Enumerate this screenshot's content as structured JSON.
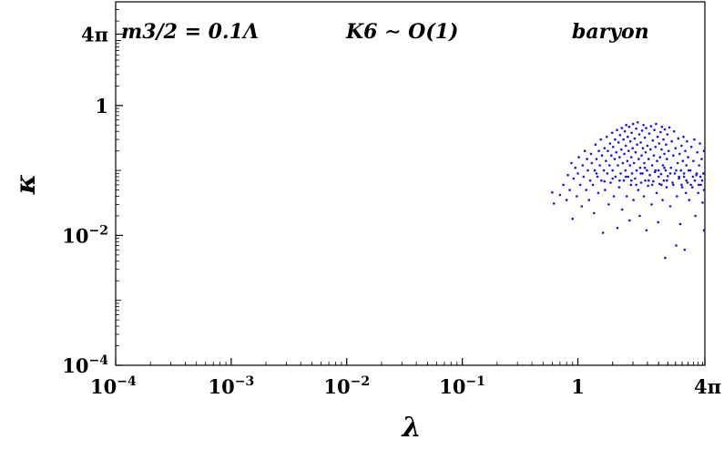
{
  "chart_data": {
    "type": "scatter",
    "title": "",
    "xlabel": "λ",
    "ylabel": "κ",
    "x_scale": "log",
    "y_scale": "log",
    "xlim": [
      0.0001,
      12.566
    ],
    "ylim": [
      0.0001,
      39.5
    ],
    "x_ticks": [
      {
        "value": 0.0001,
        "label": "10−4"
      },
      {
        "value": 0.001,
        "label": "10−3"
      },
      {
        "value": 0.01,
        "label": "10−2"
      },
      {
        "value": 0.1,
        "label": "10−1"
      },
      {
        "value": 1,
        "label": "1"
      },
      {
        "value": 12.566,
        "label": "4π"
      }
    ],
    "y_ticks": [
      {
        "value": 0.0001,
        "label": "10−4"
      },
      {
        "value": 0.01,
        "label": "10−2"
      },
      {
        "value": 1,
        "label": "1"
      },
      {
        "value": 12.566,
        "label": "4π"
      }
    ],
    "annotations": [
      "m3/2 = 0.1Λ",
      "K6 ∼ O(1)",
      "baryon"
    ],
    "grid": false,
    "legend": "none",
    "marker_color": "#1515e6",
    "series": [
      {
        "points": [
          [
            0.6,
            0.046
          ],
          [
            0.62,
            0.031
          ],
          [
            0.7,
            0.042
          ],
          [
            0.75,
            0.06
          ],
          [
            0.8,
            0.035
          ],
          [
            0.82,
            0.085
          ],
          [
            0.85,
            0.05
          ],
          [
            0.88,
            0.13
          ],
          [
            0.9,
            0.018
          ],
          [
            0.92,
            0.075
          ],
          [
            0.95,
            0.11
          ],
          [
            0.98,
            0.04
          ],
          [
            1.0,
            0.09
          ],
          [
            1.02,
            0.16
          ],
          [
            1.05,
            0.06
          ],
          [
            1.08,
            0.028
          ],
          [
            1.1,
            0.12
          ],
          [
            1.12,
            0.08
          ],
          [
            1.15,
            0.2
          ],
          [
            1.18,
            0.05
          ],
          [
            1.2,
            0.15
          ],
          [
            1.22,
            0.1
          ],
          [
            1.25,
            0.035
          ],
          [
            1.28,
            0.07
          ],
          [
            1.3,
            0.18
          ],
          [
            1.32,
            0.13
          ],
          [
            1.35,
            0.06
          ],
          [
            1.38,
            0.022
          ],
          [
            1.4,
            0.1
          ],
          [
            1.42,
            0.25
          ],
          [
            1.45,
            0.15
          ],
          [
            1.48,
            0.08
          ],
          [
            1.5,
            0.045
          ],
          [
            1.52,
            0.2
          ],
          [
            1.55,
            0.12
          ],
          [
            1.58,
            0.3
          ],
          [
            1.6,
            0.07
          ],
          [
            1.62,
            0.17
          ],
          [
            1.65,
            0.011
          ],
          [
            1.68,
            0.1
          ],
          [
            1.7,
            0.22
          ],
          [
            1.72,
            0.05
          ],
          [
            1.75,
            0.14
          ],
          [
            1.78,
            0.33
          ],
          [
            1.8,
            0.09
          ],
          [
            1.82,
            0.2
          ],
          [
            1.85,
            0.03
          ],
          [
            1.88,
            0.12
          ],
          [
            1.9,
            0.26
          ],
          [
            1.92,
            0.065
          ],
          [
            1.95,
            0.17
          ],
          [
            1.98,
            0.38
          ],
          [
            2.0,
            0.1
          ],
          [
            2.02,
            0.23
          ],
          [
            2.05,
            0.04
          ],
          [
            2.08,
            0.15
          ],
          [
            2.1,
            0.3
          ],
          [
            2.12,
            0.08
          ],
          [
            2.15,
            0.19
          ],
          [
            2.18,
            0.42
          ],
          [
            2.2,
            0.013
          ],
          [
            2.22,
            0.12
          ],
          [
            2.25,
            0.27
          ],
          [
            2.28,
            0.055
          ],
          [
            2.3,
            0.16
          ],
          [
            2.32,
            0.35
          ],
          [
            2.35,
            0.09
          ],
          [
            2.38,
            0.21
          ],
          [
            2.4,
            0.45
          ],
          [
            2.42,
            0.025
          ],
          [
            2.45,
            0.13
          ],
          [
            2.48,
            0.3
          ],
          [
            2.5,
            0.07
          ],
          [
            2.52,
            0.18
          ],
          [
            2.55,
            0.4
          ],
          [
            2.58,
            0.1
          ],
          [
            2.6,
            0.24
          ],
          [
            2.62,
            0.5
          ],
          [
            2.65,
            0.04
          ],
          [
            2.68,
            0.14
          ],
          [
            2.7,
            0.33
          ],
          [
            2.72,
            0.08
          ],
          [
            2.75,
            0.2
          ],
          [
            2.78,
            0.47
          ],
          [
            2.8,
            0.017
          ],
          [
            2.82,
            0.12
          ],
          [
            2.85,
            0.28
          ],
          [
            2.88,
            0.06
          ],
          [
            2.9,
            0.16
          ],
          [
            2.92,
            0.38
          ],
          [
            2.95,
            0.09
          ],
          [
            2.98,
            0.22
          ],
          [
            3.0,
            0.52
          ],
          [
            3.03,
            0.035
          ],
          [
            3.06,
            0.13
          ],
          [
            3.1,
            0.31
          ],
          [
            3.13,
            0.075
          ],
          [
            3.16,
            0.19
          ],
          [
            3.2,
            0.44
          ],
          [
            3.23,
            0.1
          ],
          [
            3.26,
            0.25
          ],
          [
            3.3,
            0.55
          ],
          [
            3.33,
            0.05
          ],
          [
            3.36,
            0.15
          ],
          [
            3.4,
            0.36
          ],
          [
            3.43,
            0.02
          ],
          [
            3.46,
            0.11
          ],
          [
            3.5,
            0.27
          ],
          [
            3.53,
            0.065
          ],
          [
            3.56,
            0.17
          ],
          [
            3.6,
            0.41
          ],
          [
            3.63,
            0.09
          ],
          [
            3.66,
            0.22
          ],
          [
            3.7,
            0.5
          ],
          [
            3.73,
            0.04
          ],
          [
            3.76,
            0.13
          ],
          [
            3.8,
            0.32
          ],
          [
            3.83,
            0.07
          ],
          [
            3.86,
            0.19
          ],
          [
            3.9,
            0.45
          ],
          [
            3.93,
            0.012
          ],
          [
            3.96,
            0.1
          ],
          [
            4.0,
            0.24
          ],
          [
            4.05,
            0.058
          ],
          [
            4.1,
            0.15
          ],
          [
            4.15,
            0.37
          ],
          [
            4.2,
            0.085
          ],
          [
            4.25,
            0.21
          ],
          [
            4.3,
            0.48
          ],
          [
            4.35,
            0.03
          ],
          [
            4.4,
            0.12
          ],
          [
            4.45,
            0.29
          ],
          [
            4.5,
            0.068
          ],
          [
            4.55,
            0.17
          ],
          [
            4.6,
            0.42
          ],
          [
            4.65,
            0.095
          ],
          [
            4.7,
            0.23
          ],
          [
            4.75,
            0.52
          ],
          [
            4.8,
            0.045
          ],
          [
            4.85,
            0.14
          ],
          [
            4.9,
            0.33
          ],
          [
            4.95,
            0.016
          ],
          [
            5.0,
            0.1
          ],
          [
            5.05,
            0.26
          ],
          [
            5.1,
            0.062
          ],
          [
            5.15,
            0.16
          ],
          [
            5.2,
            0.39
          ],
          [
            5.25,
            0.088
          ],
          [
            5.3,
            0.21
          ],
          [
            5.35,
            0.47
          ],
          [
            5.4,
            0.035
          ],
          [
            5.45,
            0.12
          ],
          [
            5.5,
            0.3
          ],
          [
            5.55,
            0.07
          ],
          [
            5.6,
            0.18
          ],
          [
            5.65,
            0.43
          ],
          [
            5.7,
            0.0045
          ],
          [
            5.75,
            0.1
          ],
          [
            5.8,
            0.25
          ],
          [
            5.85,
            0.055
          ],
          [
            5.9,
            0.15
          ],
          [
            5.95,
            0.36
          ],
          [
            6.0,
            0.082
          ],
          [
            6.1,
            0.2
          ],
          [
            6.2,
            0.46
          ],
          [
            6.3,
            0.028
          ],
          [
            6.4,
            0.11
          ],
          [
            6.5,
            0.28
          ],
          [
            6.6,
            0.065
          ],
          [
            6.7,
            0.17
          ],
          [
            6.8,
            0.4
          ],
          [
            6.9,
            0.09
          ],
          [
            7.0,
            0.22
          ],
          [
            7.1,
            0.007
          ],
          [
            7.2,
            0.04
          ],
          [
            7.3,
            0.13
          ],
          [
            7.4,
            0.31
          ],
          [
            7.5,
            0.075
          ],
          [
            7.6,
            0.18
          ],
          [
            7.7,
            0.015
          ],
          [
            7.8,
            0.1
          ],
          [
            7.9,
            0.24
          ],
          [
            8.0,
            0.055
          ],
          [
            8.1,
            0.14
          ],
          [
            8.2,
            0.33
          ],
          [
            8.3,
            0.08
          ],
          [
            8.4,
            0.006
          ],
          [
            8.5,
            0.2
          ],
          [
            8.6,
            0.045
          ],
          [
            8.7,
            0.12
          ],
          [
            8.8,
            0.28
          ],
          [
            8.9,
            0.065
          ],
          [
            9.0,
            0.16
          ],
          [
            9.2,
            0.035
          ],
          [
            9.4,
            0.1
          ],
          [
            9.6,
            0.23
          ],
          [
            9.8,
            0.055
          ],
          [
            10.0,
            0.14
          ],
          [
            10.2,
            0.3
          ],
          [
            10.4,
            0.02
          ],
          [
            10.6,
            0.085
          ],
          [
            10.8,
            0.19
          ],
          [
            11.0,
            0.045
          ],
          [
            11.2,
            0.12
          ],
          [
            11.4,
            0.26
          ],
          [
            11.6,
            0.06
          ],
          [
            11.8,
            0.15
          ],
          [
            12.0,
            0.032
          ],
          [
            12.2,
            0.09
          ],
          [
            12.4,
            0.2
          ],
          [
            12.5,
            0.05
          ],
          [
            12.55,
            0.012
          ],
          [
            2.6,
            0.08
          ],
          [
            2.9,
            0.07
          ],
          [
            3.2,
            0.06
          ],
          [
            3.5,
            0.09
          ],
          [
            3.8,
            0.11
          ],
          [
            4.1,
            0.07
          ],
          [
            4.4,
            0.06
          ],
          [
            4.7,
            0.1
          ],
          [
            5.0,
            0.08
          ],
          [
            5.3,
            0.06
          ],
          [
            5.6,
            0.11
          ],
          [
            5.9,
            0.07
          ],
          [
            6.3,
            0.09
          ],
          [
            6.7,
            0.06
          ],
          [
            7.1,
            0.1
          ],
          [
            7.5,
            0.08
          ],
          [
            7.9,
            0.06
          ],
          [
            8.3,
            0.09
          ],
          [
            8.7,
            0.07
          ],
          [
            9.1,
            0.1
          ],
          [
            9.5,
            0.06
          ],
          [
            9.9,
            0.08
          ],
          [
            10.3,
            0.07
          ],
          [
            10.7,
            0.09
          ],
          [
            11.1,
            0.06
          ],
          [
            11.5,
            0.08
          ],
          [
            11.9,
            0.07
          ],
          [
            12.3,
            0.09
          ],
          [
            2.3,
            0.07
          ],
          [
            2.0,
            0.075
          ],
          [
            1.7,
            0.068
          ],
          [
            1.45,
            0.09
          ]
        ]
      }
    ]
  }
}
